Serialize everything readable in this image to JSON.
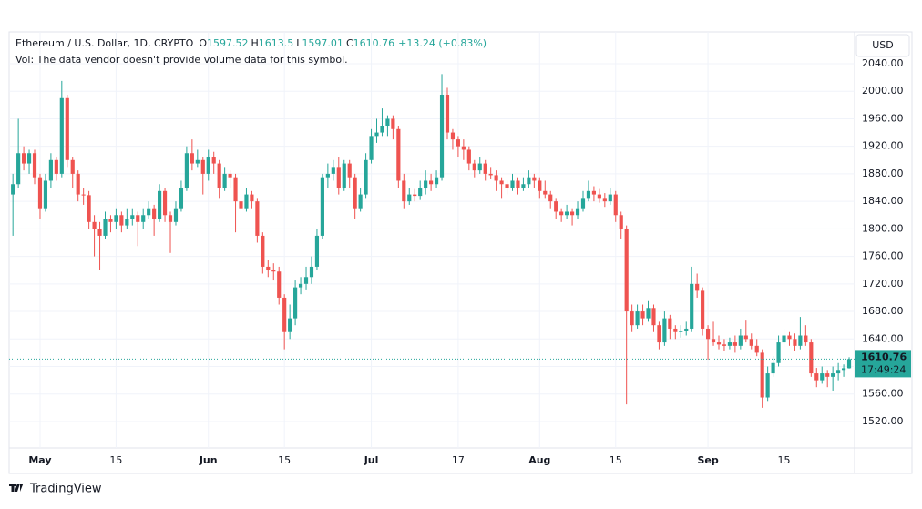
{
  "chart_data": {
    "type": "candlestick",
    "title": "Ethereum / U.S. Dollar, 1D, CRYPTO",
    "ohlc_labels": [
      "O",
      "H",
      "L",
      "C"
    ],
    "change_label": "+13.24 (+0.83%)",
    "volume_note": "Vol: The data vendor doesn't provide volume data for this symbol.",
    "currency": "USD",
    "countdown": "17:49:24",
    "brand": "TradingView",
    "up_color": "#26a69a",
    "down_color": "#ef5350",
    "xlim": [
      -0.7,
      155
    ],
    "xticks": [
      {
        "value": 5,
        "label": "May"
      },
      {
        "value": 19,
        "label": "15"
      },
      {
        "value": 36,
        "label": "Jun"
      },
      {
        "value": 50,
        "label": "15"
      },
      {
        "value": 66,
        "label": "Jul"
      },
      {
        "value": 82,
        "label": "17"
      },
      {
        "value": 97,
        "label": "Aug"
      },
      {
        "value": 111,
        "label": "15"
      },
      {
        "value": 128,
        "label": "Sep"
      },
      {
        "value": 142,
        "label": "15"
      }
    ],
    "ylim": [
      1481.6,
      2086.3
    ],
    "yticks": [
      {
        "value": 1520,
        "label": "1520.00"
      },
      {
        "value": 1560,
        "label": "1560.00"
      },
      {
        "value": 1600,
        "label": "1600.00"
      },
      {
        "value": 1640,
        "label": "1640.00"
      },
      {
        "value": 1680,
        "label": "1680.00"
      },
      {
        "value": 1720,
        "label": "1720.00"
      },
      {
        "value": 1760,
        "label": "1760.00"
      },
      {
        "value": 1800,
        "label": "1800.00"
      },
      {
        "value": 1840,
        "label": "1840.00"
      },
      {
        "value": 1880,
        "label": "1880.00"
      },
      {
        "value": 1920,
        "label": "1920.00"
      },
      {
        "value": 1960,
        "label": "1960.00"
      },
      {
        "value": 2000,
        "label": "2000.00"
      },
      {
        "value": 2040,
        "label": "2040.00"
      }
    ],
    "grid": true,
    "candles": [
      [
        1850,
        1880,
        1790,
        1865
      ],
      [
        1865,
        1960,
        1860,
        1910
      ],
      [
        1910,
        1920,
        1885,
        1895
      ],
      [
        1895,
        1915,
        1880,
        1910
      ],
      [
        1910,
        1915,
        1865,
        1875
      ],
      [
        1875,
        1880,
        1815,
        1830
      ],
      [
        1830,
        1880,
        1825,
        1870
      ],
      [
        1870,
        1910,
        1860,
        1900
      ],
      [
        1900,
        1905,
        1870,
        1880
      ],
      [
        1880,
        2015,
        1875,
        1990
      ],
      [
        1990,
        1995,
        1890,
        1900
      ],
      [
        1900,
        1905,
        1860,
        1880
      ],
      [
        1880,
        1885,
        1840,
        1850
      ],
      [
        1850,
        1860,
        1835,
        1849
      ],
      [
        1849,
        1855,
        1800,
        1810
      ],
      [
        1810,
        1820,
        1760,
        1800
      ],
      [
        1800,
        1810,
        1740,
        1790
      ],
      [
        1790,
        1825,
        1785,
        1815
      ],
      [
        1815,
        1820,
        1795,
        1810
      ],
      [
        1810,
        1830,
        1800,
        1820
      ],
      [
        1820,
        1825,
        1795,
        1805
      ],
      [
        1805,
        1830,
        1800,
        1815
      ],
      [
        1815,
        1830,
        1805,
        1820
      ],
      [
        1820,
        1825,
        1775,
        1810
      ],
      [
        1810,
        1830,
        1800,
        1820
      ],
      [
        1820,
        1840,
        1815,
        1830
      ],
      [
        1830,
        1835,
        1790,
        1815
      ],
      [
        1815,
        1865,
        1810,
        1855
      ],
      [
        1855,
        1860,
        1810,
        1820
      ],
      [
        1820,
        1825,
        1765,
        1810
      ],
      [
        1810,
        1840,
        1805,
        1830
      ],
      [
        1830,
        1870,
        1825,
        1860
      ],
      [
        1860,
        1920,
        1855,
        1910
      ],
      [
        1910,
        1930,
        1885,
        1895
      ],
      [
        1895,
        1915,
        1890,
        1900
      ],
      [
        1900,
        1905,
        1850,
        1880
      ],
      [
        1880,
        1915,
        1870,
        1905
      ],
      [
        1905,
        1912,
        1880,
        1895
      ],
      [
        1895,
        1900,
        1845,
        1860
      ],
      [
        1860,
        1890,
        1855,
        1880
      ],
      [
        1880,
        1885,
        1860,
        1875
      ],
      [
        1875,
        1880,
        1795,
        1840
      ],
      [
        1840,
        1850,
        1805,
        1830
      ],
      [
        1830,
        1860,
        1825,
        1850
      ],
      [
        1850,
        1855,
        1830,
        1840
      ],
      [
        1840,
        1845,
        1780,
        1790
      ],
      [
        1790,
        1795,
        1735,
        1745
      ],
      [
        1745,
        1755,
        1730,
        1740
      ],
      [
        1740,
        1750,
        1725,
        1738
      ],
      [
        1738,
        1745,
        1690,
        1700
      ],
      [
        1700,
        1705,
        1625,
        1650
      ],
      [
        1650,
        1690,
        1640,
        1670
      ],
      [
        1670,
        1725,
        1660,
        1715
      ],
      [
        1715,
        1730,
        1705,
        1720
      ],
      [
        1720,
        1745,
        1712,
        1730
      ],
      [
        1730,
        1760,
        1720,
        1745
      ],
      [
        1745,
        1800,
        1740,
        1790
      ],
      [
        1790,
        1880,
        1785,
        1875
      ],
      [
        1875,
        1895,
        1860,
        1880
      ],
      [
        1880,
        1900,
        1870,
        1890
      ],
      [
        1890,
        1905,
        1850,
        1860
      ],
      [
        1860,
        1900,
        1855,
        1895
      ],
      [
        1895,
        1900,
        1860,
        1875
      ],
      [
        1875,
        1880,
        1815,
        1830
      ],
      [
        1830,
        1860,
        1825,
        1850
      ],
      [
        1850,
        1910,
        1845,
        1900
      ],
      [
        1900,
        1945,
        1895,
        1935
      ],
      [
        1935,
        1960,
        1925,
        1940
      ],
      [
        1940,
        1975,
        1935,
        1950
      ],
      [
        1950,
        1965,
        1935,
        1960
      ],
      [
        1960,
        1965,
        1930,
        1945
      ],
      [
        1945,
        1950,
        1860,
        1870
      ],
      [
        1870,
        1880,
        1830,
        1840
      ],
      [
        1840,
        1860,
        1835,
        1850
      ],
      [
        1850,
        1858,
        1840,
        1848
      ],
      [
        1848,
        1870,
        1842,
        1860
      ],
      [
        1860,
        1885,
        1850,
        1870
      ],
      [
        1870,
        1880,
        1855,
        1865
      ],
      [
        1865,
        1885,
        1860,
        1875
      ],
      [
        1875,
        2025,
        1870,
        1995
      ],
      [
        1995,
        2005,
        1930,
        1940
      ],
      [
        1940,
        1945,
        1915,
        1930
      ],
      [
        1930,
        1935,
        1905,
        1920
      ],
      [
        1920,
        1930,
        1900,
        1915
      ],
      [
        1915,
        1920,
        1885,
        1895
      ],
      [
        1895,
        1900,
        1875,
        1885
      ],
      [
        1885,
        1905,
        1880,
        1895
      ],
      [
        1895,
        1900,
        1870,
        1880
      ],
      [
        1880,
        1890,
        1872,
        1878
      ],
      [
        1878,
        1885,
        1855,
        1870
      ],
      [
        1870,
        1875,
        1845,
        1865
      ],
      [
        1865,
        1870,
        1850,
        1860
      ],
      [
        1860,
        1880,
        1855,
        1870
      ],
      [
        1870,
        1875,
        1850,
        1860
      ],
      [
        1860,
        1875,
        1855,
        1865
      ],
      [
        1865,
        1885,
        1860,
        1875
      ],
      [
        1875,
        1880,
        1860,
        1870
      ],
      [
        1870,
        1875,
        1845,
        1855
      ],
      [
        1855,
        1870,
        1845,
        1850
      ],
      [
        1850,
        1855,
        1830,
        1840
      ],
      [
        1840,
        1845,
        1815,
        1825
      ],
      [
        1825,
        1830,
        1810,
        1820
      ],
      [
        1820,
        1835,
        1815,
        1825
      ],
      [
        1825,
        1830,
        1805,
        1820
      ],
      [
        1820,
        1840,
        1815,
        1830
      ],
      [
        1830,
        1855,
        1825,
        1845
      ],
      [
        1845,
        1870,
        1840,
        1855
      ],
      [
        1855,
        1862,
        1840,
        1850
      ],
      [
        1850,
        1858,
        1838,
        1845
      ],
      [
        1845,
        1852,
        1832,
        1840
      ],
      [
        1840,
        1860,
        1835,
        1850
      ],
      [
        1850,
        1855,
        1810,
        1820
      ],
      [
        1820,
        1825,
        1785,
        1800
      ],
      [
        1800,
        1805,
        1545,
        1680
      ],
      [
        1680,
        1690,
        1650,
        1660
      ],
      [
        1660,
        1690,
        1655,
        1680
      ],
      [
        1680,
        1690,
        1660,
        1670
      ],
      [
        1670,
        1695,
        1665,
        1685
      ],
      [
        1685,
        1690,
        1650,
        1660
      ],
      [
        1660,
        1665,
        1625,
        1635
      ],
      [
        1635,
        1680,
        1630,
        1670
      ],
      [
        1670,
        1675,
        1640,
        1655
      ],
      [
        1655,
        1660,
        1640,
        1650
      ],
      [
        1650,
        1660,
        1642,
        1652
      ],
      [
        1652,
        1665,
        1645,
        1655
      ],
      [
        1655,
        1745,
        1650,
        1720
      ],
      [
        1720,
        1735,
        1700,
        1710
      ],
      [
        1710,
        1715,
        1645,
        1655
      ],
      [
        1655,
        1660,
        1610,
        1640
      ],
      [
        1640,
        1665,
        1630,
        1635
      ],
      [
        1635,
        1645,
        1625,
        1632
      ],
      [
        1632,
        1640,
        1622,
        1630
      ],
      [
        1630,
        1642,
        1625,
        1635
      ],
      [
        1635,
        1645,
        1620,
        1630
      ],
      [
        1630,
        1655,
        1625,
        1645
      ],
      [
        1645,
        1668,
        1635,
        1640
      ],
      [
        1640,
        1648,
        1625,
        1630
      ],
      [
        1630,
        1640,
        1615,
        1620
      ],
      [
        1620,
        1625,
        1540,
        1555
      ],
      [
        1555,
        1600,
        1550,
        1590
      ],
      [
        1590,
        1615,
        1585,
        1605
      ],
      [
        1605,
        1645,
        1600,
        1635
      ],
      [
        1635,
        1655,
        1628,
        1645
      ],
      [
        1645,
        1650,
        1630,
        1640
      ],
      [
        1640,
        1648,
        1622,
        1630
      ],
      [
        1630,
        1672,
        1625,
        1645
      ],
      [
        1645,
        1660,
        1630,
        1635
      ],
      [
        1635,
        1640,
        1585,
        1590
      ],
      [
        1590,
        1598,
        1570,
        1580
      ],
      [
        1580,
        1600,
        1575,
        1590
      ],
      [
        1590,
        1595,
        1570,
        1585
      ],
      [
        1585,
        1600,
        1565,
        1590
      ],
      [
        1590,
        1605,
        1580,
        1595
      ],
      [
        1595,
        1603,
        1585,
        1597.52
      ],
      [
        1597.52,
        1613.5,
        1597.01,
        1610.76
      ]
    ]
  }
}
